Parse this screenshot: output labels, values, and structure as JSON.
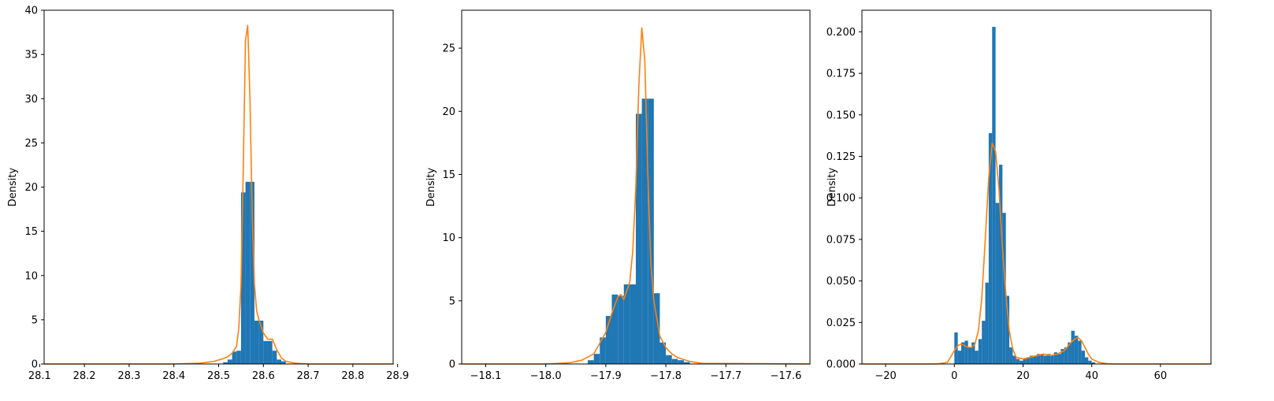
{
  "colors": {
    "bars": "#1f77b4",
    "kde": "#ff7f0e",
    "axes": "#000000",
    "background": "#ffffff"
  },
  "chart_data": [
    {
      "type": "bar",
      "subtype": "histogram-with-kde",
      "title": "",
      "xlabel": "",
      "ylabel": "Density",
      "xlim": [
        28.11,
        28.89
      ],
      "ylim": [
        0,
        40
      ],
      "xticks": [
        28.1,
        28.2,
        28.3,
        28.4,
        28.5,
        28.6,
        28.7,
        28.8,
        28.9
      ],
      "xtick_labels": [
        "28.1",
        "28.2",
        "28.3",
        "28.4",
        "28.5",
        "28.6",
        "28.7",
        "28.8",
        "28.9"
      ],
      "yticks": [
        0,
        5,
        10,
        15,
        20,
        25,
        30,
        35,
        40
      ],
      "ytick_labels": [
        "0",
        "5",
        "10",
        "15",
        "20",
        "25",
        "30",
        "35",
        "40"
      ],
      "grid": false,
      "histogram": {
        "bin_edges": [
          28.51,
          28.52,
          28.53,
          28.54,
          28.55,
          28.56,
          28.57,
          28.58,
          28.59,
          28.6,
          28.61,
          28.62,
          28.63,
          28.64,
          28.65
        ],
        "density": [
          0.2,
          0.5,
          1.4,
          1.5,
          19.4,
          20.6,
          20.6,
          4.9,
          4.9,
          2.6,
          2.6,
          1.5,
          0.5,
          0.3
        ]
      },
      "kde": {
        "x": [
          28.11,
          28.4,
          28.46,
          28.49,
          28.51,
          28.52,
          28.53,
          28.54,
          28.545,
          28.55,
          28.555,
          28.56,
          28.565,
          28.57,
          28.575,
          28.58,
          28.585,
          28.59,
          28.6,
          28.61,
          28.62,
          28.63,
          28.64,
          28.65,
          28.67,
          28.7,
          28.89
        ],
        "y": [
          0,
          0,
          0.1,
          0.3,
          0.6,
          0.8,
          1.2,
          2.0,
          4.0,
          9.0,
          22.0,
          36.5,
          38.3,
          30.0,
          17.0,
          9.0,
          6.0,
          5.0,
          3.5,
          2.8,
          2.8,
          1.6,
          0.7,
          0.3,
          0.1,
          0,
          0
        ]
      }
    },
    {
      "type": "bar",
      "subtype": "histogram-with-kde",
      "title": "",
      "xlabel": "",
      "ylabel": "Density",
      "xlim": [
        -18.14,
        -17.56
      ],
      "ylim": [
        0,
        28
      ],
      "xticks": [
        -18.1,
        -18.0,
        -17.9,
        -17.8,
        -17.7,
        -17.6
      ],
      "xtick_labels": [
        "−18.1",
        "−18.0",
        "−17.9",
        "−17.8",
        "−17.7",
        "−17.6"
      ],
      "yticks": [
        0,
        5,
        10,
        15,
        20,
        25
      ],
      "ytick_labels": [
        "0",
        "5",
        "10",
        "15",
        "20",
        "25"
      ],
      "grid": false,
      "histogram": {
        "bin_edges": [
          -17.93,
          -17.92,
          -17.91,
          -17.9,
          -17.89,
          -17.88,
          -17.87,
          -17.86,
          -17.85,
          -17.84,
          -17.83,
          -17.82,
          -17.81,
          -17.8,
          -17.79,
          -17.78,
          -17.77,
          -17.76
        ],
        "density": [
          0.3,
          0.8,
          2.1,
          3.8,
          5.5,
          5.4,
          6.3,
          6.3,
          19.8,
          21.0,
          21.0,
          5.6,
          1.7,
          0.7,
          0.4,
          0.3,
          0.15
        ]
      },
      "kde": {
        "x": [
          -18.14,
          -18.0,
          -17.96,
          -17.94,
          -17.92,
          -17.9,
          -17.89,
          -17.88,
          -17.875,
          -17.87,
          -17.86,
          -17.855,
          -17.85,
          -17.845,
          -17.84,
          -17.835,
          -17.83,
          -17.825,
          -17.82,
          -17.81,
          -17.8,
          -17.79,
          -17.78,
          -17.76,
          -17.74,
          -17.56
        ],
        "y": [
          0,
          0,
          0.1,
          0.3,
          0.8,
          2.5,
          4.0,
          5.3,
          5.5,
          5.1,
          6.5,
          9.0,
          14.0,
          22.0,
          26.6,
          24.0,
          15.0,
          8.0,
          5.0,
          2.2,
          1.3,
          0.8,
          0.5,
          0.2,
          0.05,
          0
        ]
      }
    },
    {
      "type": "bar",
      "subtype": "histogram-with-kde",
      "title": "",
      "xlabel": "",
      "ylabel": "Density",
      "xlim": [
        -26.9,
        74.7
      ],
      "ylim": [
        0,
        0.213
      ],
      "xticks": [
        -20,
        0,
        20,
        40,
        60
      ],
      "xtick_labels": [
        "−20",
        "0",
        "20",
        "40",
        "60"
      ],
      "yticks": [
        0,
        0.025,
        0.05,
        0.075,
        0.1,
        0.125,
        0.15,
        0.175,
        0.2
      ],
      "ytick_labels": [
        "0.000",
        "0.025",
        "0.050",
        "0.075",
        "0.100",
        "0.125",
        "0.150",
        "0.175",
        "0.200"
      ],
      "grid": false,
      "histogram": {
        "bin_edges": [
          0,
          1,
          2,
          3,
          4,
          5,
          6,
          7,
          8,
          9,
          10,
          11,
          12,
          13,
          14,
          15,
          16,
          17,
          18,
          19,
          20,
          21,
          22,
          23,
          24,
          25,
          26,
          27,
          28,
          29,
          30,
          31,
          32,
          33,
          34,
          35,
          36,
          37,
          38,
          39,
          40,
          41
        ],
        "density": [
          0.019,
          0.008,
          0.013,
          0.014,
          0.01,
          0.013,
          0.008,
          0.015,
          0.026,
          0.049,
          0.139,
          0.203,
          0.097,
          0.12,
          0.091,
          0.041,
          0.01,
          0.005,
          0.003,
          0.002,
          0.003,
          0.004,
          0.005,
          0.005,
          0.006,
          0.006,
          0.005,
          0.006,
          0.005,
          0.007,
          0.006,
          0.009,
          0.01,
          0.013,
          0.02,
          0.017,
          0.014,
          0.008,
          0.004,
          0.002,
          0.001
        ]
      },
      "kde": {
        "x": [
          -26.9,
          -5,
          -2,
          0,
          1,
          2,
          3,
          4,
          5,
          6,
          7,
          8,
          9,
          10,
          11,
          12,
          13,
          14,
          15,
          16,
          17,
          18,
          20,
          22,
          24,
          26,
          28,
          30,
          32,
          34,
          35,
          36,
          37,
          38,
          39,
          40,
          42,
          45,
          50,
          74.7
        ],
        "y": [
          0,
          0,
          0.001,
          0.008,
          0.011,
          0.012,
          0.011,
          0.01,
          0.01,
          0.012,
          0.02,
          0.04,
          0.075,
          0.112,
          0.133,
          0.128,
          0.105,
          0.07,
          0.042,
          0.02,
          0.009,
          0.004,
          0.003,
          0.004,
          0.005,
          0.006,
          0.005,
          0.006,
          0.008,
          0.013,
          0.015,
          0.016,
          0.014,
          0.01,
          0.006,
          0.003,
          0.001,
          0,
          0,
          0
        ]
      }
    }
  ]
}
